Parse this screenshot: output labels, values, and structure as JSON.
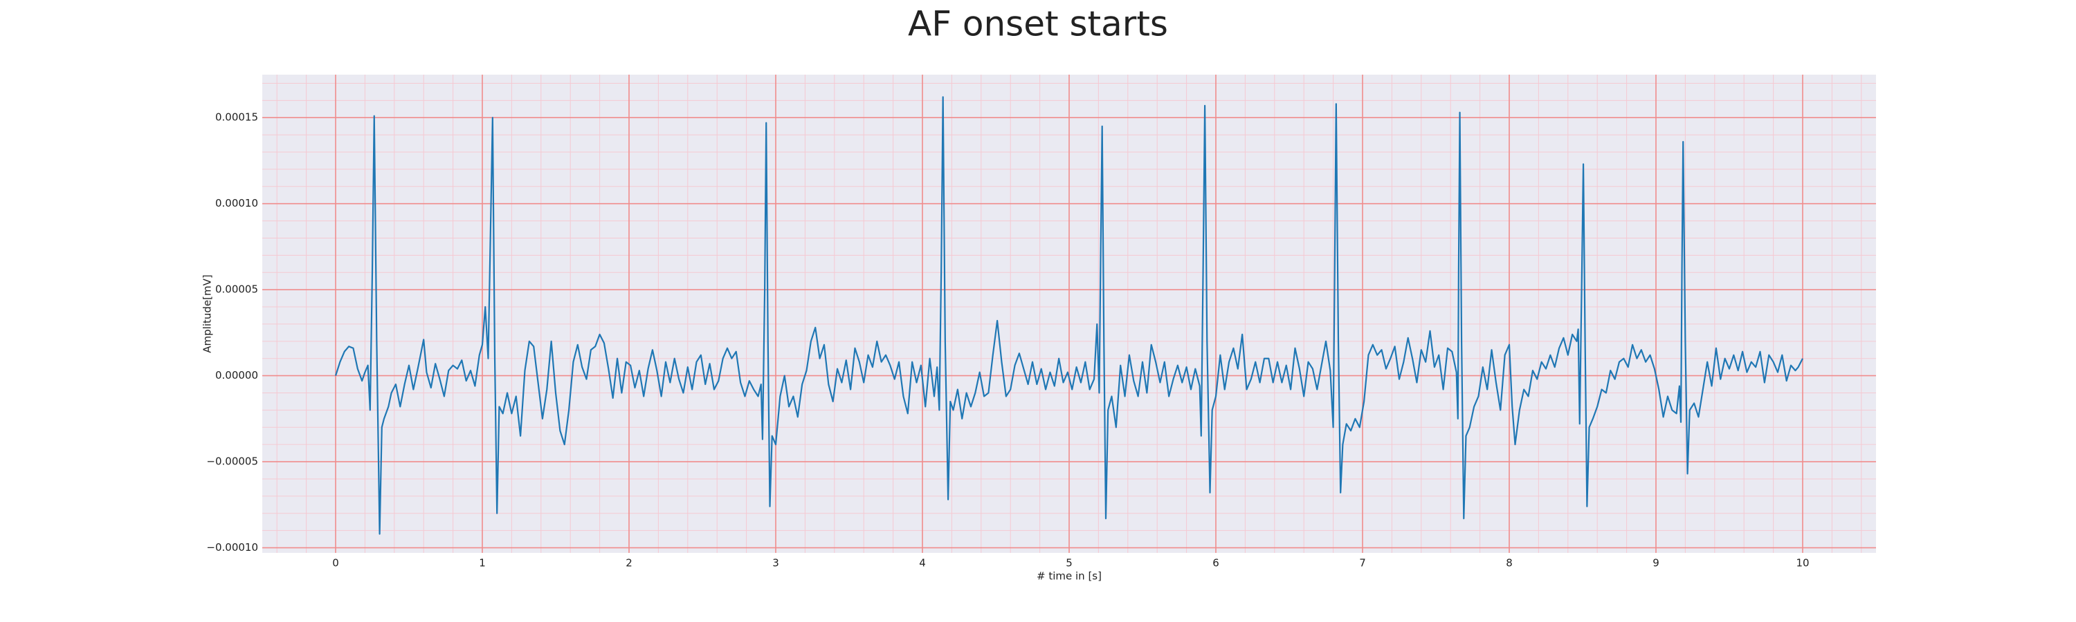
{
  "chart_data": {
    "type": "line",
    "title": "AF onset starts",
    "x_label": "# time in [s]",
    "y_label": "Amplitude[mV]",
    "color": "#1f77b4",
    "background": "#eaeaf2",
    "grid": true,
    "major_grid_color": "#f08c8c",
    "minor_grid_color": "#f5c9d2",
    "xlim": [
      -0.5,
      10.5
    ],
    "ylim": [
      -0.000103,
      0.000175
    ],
    "xticks": [
      0,
      1,
      2,
      3,
      4,
      5,
      6,
      7,
      8,
      9,
      10
    ],
    "yticks": [
      {
        "value": -0.0001,
        "label": "−0.00010"
      },
      {
        "value": -5e-05,
        "label": "−0.00005"
      },
      {
        "value": 0,
        "label": "0.00000"
      },
      {
        "value": 5e-05,
        "label": "0.00005"
      },
      {
        "value": 0.0001,
        "label": "0.00010"
      },
      {
        "value": 0.00015,
        "label": "0.00015"
      }
    ],
    "xminorticks": [
      -0.4,
      -0.2,
      0.2,
      0.4,
      0.6,
      0.8,
      1.2,
      1.4,
      1.6,
      1.8,
      2.2,
      2.4,
      2.6,
      2.8,
      3.2,
      3.4,
      3.6,
      3.8,
      4.2,
      4.4,
      4.6,
      4.8,
      5.2,
      5.4,
      5.6,
      5.8,
      6.2,
      6.4,
      6.6,
      6.8,
      7.2,
      7.4,
      7.6,
      7.8,
      8.2,
      8.4,
      8.6,
      8.8,
      9.2,
      9.4,
      9.6,
      9.8,
      10.2,
      10.4
    ],
    "yminorticks": [
      -9e-05,
      -8e-05,
      -7e-05,
      -6e-05,
      -4e-05,
      -3e-05,
      -2e-05,
      -1e-05,
      1e-05,
      2e-05,
      3e-05,
      4e-05,
      6e-05,
      7e-05,
      8e-05,
      9e-05,
      0.00011,
      0.00012,
      0.00013,
      0.00014,
      0.00016,
      0.00017
    ],
    "x": [
      0,
      0.03,
      0.06,
      0.09,
      0.12,
      0.15,
      0.18,
      0.2,
      0.22,
      0.235,
      0.25,
      0.263,
      0.28,
      0.3,
      0.315,
      0.33,
      0.36,
      0.38,
      0.41,
      0.44,
      0.47,
      0.5,
      0.53,
      0.56,
      0.6,
      0.62,
      0.65,
      0.68,
      0.71,
      0.74,
      0.77,
      0.8,
      0.83,
      0.86,
      0.89,
      0.92,
      0.95,
      0.98,
      1.0,
      1.02,
      1.04,
      1.055,
      1.07,
      1.085,
      1.1,
      1.115,
      1.14,
      1.17,
      1.2,
      1.23,
      1.26,
      1.29,
      1.32,
      1.35,
      1.38,
      1.41,
      1.44,
      1.47,
      1.5,
      1.53,
      1.56,
      1.59,
      1.62,
      1.65,
      1.68,
      1.71,
      1.74,
      1.77,
      1.8,
      1.83,
      1.86,
      1.89,
      1.92,
      1.95,
      1.98,
      2.01,
      2.04,
      2.07,
      2.1,
      2.13,
      2.16,
      2.19,
      2.22,
      2.25,
      2.28,
      2.31,
      2.34,
      2.37,
      2.4,
      2.43,
      2.46,
      2.49,
      2.52,
      2.55,
      2.58,
      2.61,
      2.64,
      2.67,
      2.7,
      2.73,
      2.76,
      2.79,
      2.82,
      2.85,
      2.88,
      2.9,
      2.91,
      2.925,
      2.935,
      2.947,
      2.96,
      2.975,
      3.0,
      3.03,
      3.06,
      3.09,
      3.12,
      3.15,
      3.18,
      3.21,
      3.24,
      3.27,
      3.3,
      3.33,
      3.36,
      3.39,
      3.42,
      3.45,
      3.48,
      3.51,
      3.54,
      3.57,
      3.6,
      3.63,
      3.66,
      3.69,
      3.72,
      3.75,
      3.78,
      3.81,
      3.84,
      3.87,
      3.9,
      3.93,
      3.96,
      3.99,
      4.02,
      4.05,
      4.08,
      4.1,
      4.115,
      4.128,
      4.14,
      4.155,
      4.175,
      4.19,
      4.21,
      4.24,
      4.27,
      4.3,
      4.33,
      4.36,
      4.39,
      4.42,
      4.45,
      4.48,
      4.51,
      4.54,
      4.57,
      4.6,
      4.63,
      4.66,
      4.69,
      4.72,
      4.75,
      4.78,
      4.81,
      4.84,
      4.87,
      4.9,
      4.93,
      4.96,
      4.99,
      5.02,
      5.05,
      5.08,
      5.11,
      5.14,
      5.17,
      5.19,
      5.205,
      5.215,
      5.225,
      5.237,
      5.25,
      5.265,
      5.29,
      5.32,
      5.35,
      5.38,
      5.41,
      5.44,
      5.47,
      5.5,
      5.53,
      5.56,
      5.59,
      5.62,
      5.65,
      5.68,
      5.71,
      5.74,
      5.77,
      5.8,
      5.83,
      5.86,
      5.89,
      5.9,
      5.913,
      5.925,
      5.94,
      5.96,
      5.975,
      6.0,
      6.03,
      6.06,
      6.09,
      6.12,
      6.15,
      6.18,
      6.21,
      6.24,
      6.27,
      6.3,
      6.33,
      6.36,
      6.39,
      6.42,
      6.45,
      6.48,
      6.51,
      6.54,
      6.57,
      6.6,
      6.63,
      6.66,
      6.69,
      6.72,
      6.75,
      6.78,
      6.8,
      6.81,
      6.82,
      6.835,
      6.85,
      6.865,
      6.89,
      6.92,
      6.95,
      6.98,
      7.01,
      7.04,
      7.07,
      7.1,
      7.13,
      7.16,
      7.19,
      7.22,
      7.25,
      7.28,
      7.31,
      7.34,
      7.37,
      7.4,
      7.43,
      7.46,
      7.49,
      7.52,
      7.55,
      7.58,
      7.61,
      7.64,
      7.65,
      7.655,
      7.663,
      7.675,
      7.69,
      7.705,
      7.73,
      7.76,
      7.79,
      7.82,
      7.85,
      7.88,
      7.91,
      7.94,
      7.97,
      8.0,
      8.02,
      8.04,
      8.07,
      8.1,
      8.13,
      8.16,
      8.19,
      8.22,
      8.25,
      8.28,
      8.31,
      8.34,
      8.37,
      8.4,
      8.43,
      8.46,
      8.47,
      8.48,
      8.495,
      8.505,
      8.517,
      8.53,
      8.545,
      8.57,
      8.6,
      8.63,
      8.66,
      8.69,
      8.72,
      8.75,
      8.78,
      8.81,
      8.84,
      8.87,
      8.9,
      8.93,
      8.96,
      8.99,
      9.02,
      9.05,
      9.08,
      9.11,
      9.14,
      9.16,
      9.17,
      9.177,
      9.185,
      9.2,
      9.215,
      9.23,
      9.26,
      9.29,
      9.32,
      9.35,
      9.38,
      9.41,
      9.44,
      9.47,
      9.5,
      9.53,
      9.56,
      9.59,
      9.62,
      9.65,
      9.68,
      9.71,
      9.74,
      9.77,
      9.8,
      9.83,
      9.86,
      9.89,
      9.92,
      9.95,
      9.97,
      10.0
    ],
    "values": [
      0,
      8e-06,
      1.4e-05,
      1.7e-05,
      1.6e-05,
      4e-06,
      -3e-06,
      2e-06,
      6e-06,
      -2e-05,
      6e-05,
      0.000151,
      2e-05,
      -9.2e-05,
      -3e-05,
      -2.5e-05,
      -1.8e-05,
      -1e-05,
      -5e-06,
      -1.8e-05,
      -5e-06,
      6e-06,
      -8e-06,
      4e-06,
      2.1e-05,
      2e-06,
      -7e-06,
      7e-06,
      -2e-06,
      -1.2e-05,
      3e-06,
      6e-06,
      4e-06,
      9e-06,
      -3e-06,
      3e-06,
      -6e-06,
      1.2e-05,
      1.8e-05,
      4e-05,
      1e-05,
      8e-05,
      0.00015,
      1e-05,
      -8e-05,
      -1.8e-05,
      -2.2e-05,
      -1e-05,
      -2.2e-05,
      -1.2e-05,
      -3.5e-05,
      3e-06,
      2e-05,
      1.7e-05,
      -4e-06,
      -2.5e-05,
      -8e-06,
      2e-05,
      -1e-05,
      -3.2e-05,
      -4e-05,
      -2e-05,
      8e-06,
      1.8e-05,
      5e-06,
      -2e-06,
      1.5e-05,
      1.7e-05,
      2.4e-05,
      1.9e-05,
      4e-06,
      -1.3e-05,
      1e-05,
      -1e-05,
      8e-06,
      6e-06,
      -7e-06,
      3e-06,
      -1.2e-05,
      4e-06,
      1.5e-05,
      3e-06,
      -1.2e-05,
      8e-06,
      -4e-06,
      1e-05,
      -2e-06,
      -1e-05,
      5e-06,
      -8e-06,
      8e-06,
      1.2e-05,
      -5e-06,
      7e-06,
      -8e-06,
      -3e-06,
      1e-05,
      1.6e-05,
      1e-05,
      1.4e-05,
      -4e-06,
      -1.2e-05,
      -3e-06,
      -8e-06,
      -1.2e-05,
      -5e-06,
      -3.7e-05,
      5e-05,
      0.000147,
      2e-05,
      -7.6e-05,
      -3.5e-05,
      -4e-05,
      -1.2e-05,
      0,
      -1.8e-05,
      -1.2e-05,
      -2.4e-05,
      -5e-06,
      3e-06,
      2e-05,
      2.8e-05,
      1e-05,
      1.8e-05,
      -5e-06,
      -1.5e-05,
      4e-06,
      -4e-06,
      9e-06,
      -8e-06,
      1.6e-05,
      8e-06,
      -4e-06,
      1.2e-05,
      5e-06,
      2e-05,
      8e-06,
      1.2e-05,
      6e-06,
      -2e-06,
      8e-06,
      -1.2e-05,
      -2.2e-05,
      8e-06,
      -4e-06,
      6e-06,
      -1.8e-05,
      1e-05,
      -1.2e-05,
      5e-06,
      -2e-05,
      6e-05,
      0.000162,
      2e-05,
      -7.2e-05,
      -1.5e-05,
      -2e-05,
      -8e-06,
      -2.5e-05,
      -1e-05,
      -1.8e-05,
      -1e-05,
      2e-06,
      -1.2e-05,
      -1e-05,
      1.2e-05,
      3.2e-05,
      8e-06,
      -1.2e-05,
      -8e-06,
      6e-06,
      1.3e-05,
      4e-06,
      -5e-06,
      8e-06,
      -5e-06,
      4e-06,
      -8e-06,
      2e-06,
      -6e-06,
      1e-05,
      -4e-06,
      2e-06,
      -8e-06,
      5e-06,
      -4e-06,
      8e-06,
      -8e-06,
      -2e-06,
      3e-05,
      -1e-05,
      7e-05,
      0.000145,
      2e-05,
      -8.3e-05,
      -2e-05,
      -1.2e-05,
      -3e-05,
      6e-06,
      -1.2e-05,
      1.2e-05,
      -3e-06,
      -1.2e-05,
      8e-06,
      -1e-05,
      1.8e-05,
      8e-06,
      -4e-06,
      8e-06,
      -1.2e-05,
      -2e-06,
      6e-06,
      -4e-06,
      5e-06,
      -8e-06,
      4e-06,
      -6e-06,
      -3.5e-05,
      6e-05,
      0.000157,
      2e-05,
      -6.8e-05,
      -2e-05,
      -1.2e-05,
      1.2e-05,
      -8e-06,
      8e-06,
      1.6e-05,
      4e-06,
      2.4e-05,
      -8e-06,
      -2e-06,
      8e-06,
      -4e-06,
      1e-05,
      1e-05,
      -4e-06,
      8e-06,
      -4e-06,
      6e-06,
      -8e-06,
      1.6e-05,
      4e-06,
      -1.2e-05,
      8e-06,
      4e-06,
      -8e-06,
      6e-06,
      2e-05,
      3e-06,
      -3e-05,
      6e-05,
      0.000158,
      2e-05,
      -6.8e-05,
      -4e-05,
      -2.8e-05,
      -3.2e-05,
      -2.5e-05,
      -3e-05,
      -1.5e-05,
      1.2e-05,
      1.8e-05,
      1.2e-05,
      1.5e-05,
      4e-06,
      1e-05,
      1.7e-05,
      -2e-06,
      8e-06,
      2.2e-05,
      1e-05,
      -4e-06,
      1.5e-05,
      8e-06,
      2.6e-05,
      5e-06,
      1.2e-05,
      -8e-06,
      1.6e-05,
      1.4e-05,
      2e-06,
      -2.5e-05,
      6e-05,
      0.000153,
      2e-05,
      -8.3e-05,
      -3.5e-05,
      -3e-05,
      -1.8e-05,
      -1.2e-05,
      5e-06,
      -8e-06,
      1.5e-05,
      -4e-06,
      -2e-05,
      1.2e-05,
      1.8e-05,
      -1.8e-05,
      -4e-05,
      -2e-05,
      -8e-06,
      -1.2e-05,
      3e-06,
      -2e-06,
      8e-06,
      4e-06,
      1.2e-05,
      5e-06,
      1.6e-05,
      2.2e-05,
      1.2e-05,
      2.4e-05,
      2e-05,
      2.7e-05,
      -2.8e-05,
      6e-05,
      0.000123,
      2e-05,
      -7.6e-05,
      -3e-05,
      -2.5e-05,
      -1.8e-05,
      -8e-06,
      -1e-05,
      3e-06,
      -2e-06,
      8e-06,
      1e-05,
      5e-06,
      1.8e-05,
      1e-05,
      1.5e-05,
      8e-06,
      1.2e-05,
      4e-06,
      -8e-06,
      -2.4e-05,
      -1.2e-05,
      -2e-05,
      -2.2e-05,
      -6e-06,
      -2.7e-05,
      6e-05,
      0.000136,
      2e-05,
      -5.7e-05,
      -2e-05,
      -1.6e-05,
      -2.4e-05,
      -8e-06,
      8e-06,
      -6e-06,
      1.6e-05,
      -2e-06,
      1e-05,
      4e-06,
      1.2e-05,
      3e-06,
      1.4e-05,
      2e-06,
      8e-06,
      5e-06,
      1.4e-05,
      -4e-06,
      1.2e-05,
      8e-06,
      2e-06,
      1.2e-05,
      -3e-06,
      6e-06,
      3e-06,
      5e-06,
      1e-05
    ]
  }
}
